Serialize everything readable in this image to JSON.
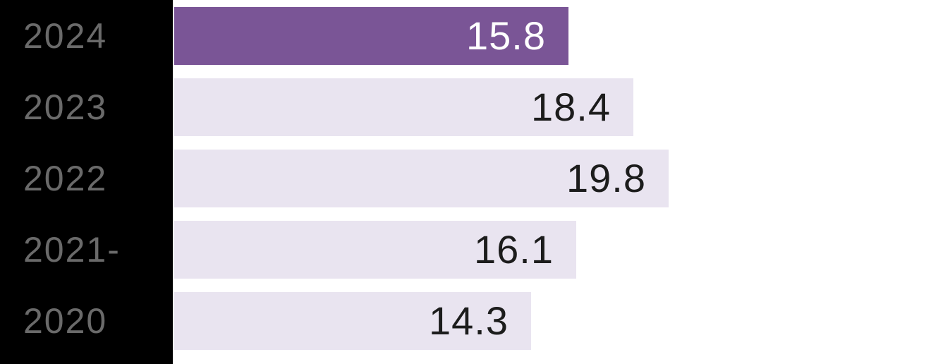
{
  "chart_data": {
    "type": "bar",
    "orientation": "horizontal",
    "title": "",
    "xlabel": "",
    "ylabel": "",
    "categories": [
      "2024",
      "2023",
      "2022",
      "2021-",
      "2020"
    ],
    "values": [
      15.8,
      18.4,
      19.8,
      16.1,
      14.3
    ],
    "value_labels": [
      "15.8",
      "18.4",
      "19.8",
      "16.1",
      "14.3"
    ],
    "xlim": [
      0,
      20.3
    ],
    "grid": false,
    "legend": false,
    "axis_ticks_visible": false,
    "highlight_index": 0,
    "colors": {
      "background": "#ffffff",
      "label_band": "#000000",
      "highlight_bar": "#7a5596",
      "bar": "#e9e4f0",
      "highlight_value_text": "#ffffff",
      "value_text": "#1c1c1c",
      "category_text": "#6a6a6a"
    }
  }
}
